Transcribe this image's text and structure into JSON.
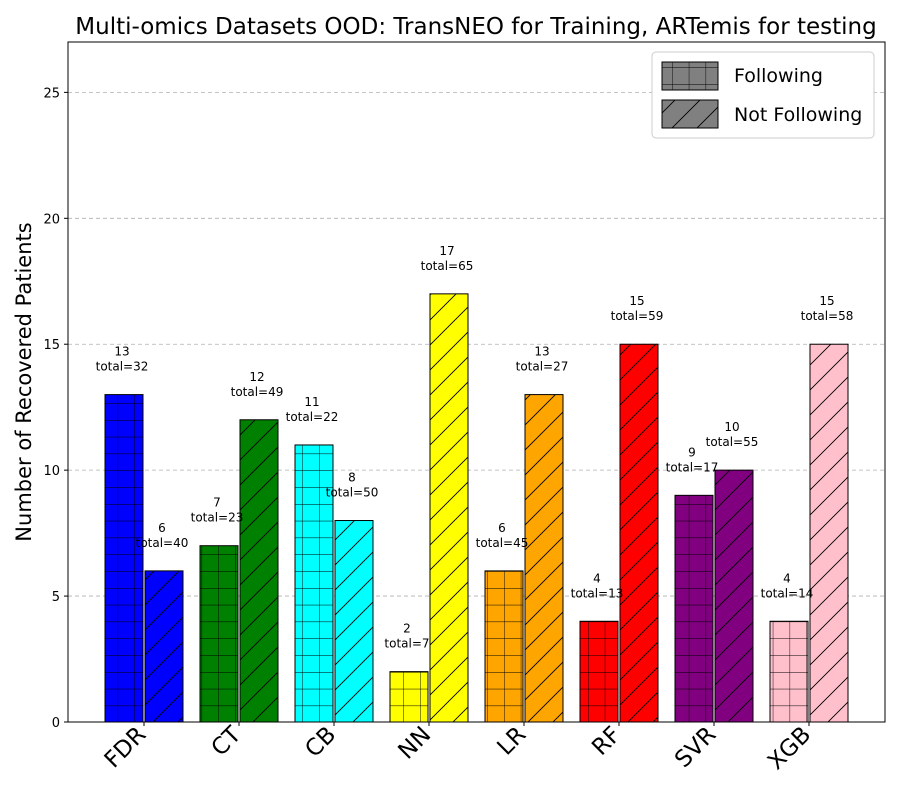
{
  "chart_data": {
    "type": "bar",
    "title": "Multi-omics Datasets OOD: TransNEO for Training, ARTemis for testing",
    "ylabel": "Number of Recovered Patients",
    "xlabel": "",
    "ylim": [
      0,
      27
    ],
    "yticks": [
      0,
      5,
      10,
      15,
      20,
      25
    ],
    "grid": "y-dashed",
    "legend_position": "top-right",
    "categories": [
      "FDR",
      "CT",
      "CB",
      "NN",
      "LR",
      "RF",
      "SVR",
      "XGB"
    ],
    "colors": [
      "#0000ff",
      "#008000",
      "#00ffff",
      "#ffff00",
      "#ffa500",
      "#ff0000",
      "#800080",
      "#ffc0cb"
    ],
    "total_prefix": "total=",
    "series": [
      {
        "name": "Following",
        "hatch": "grid",
        "values": [
          13,
          7,
          11,
          2,
          6,
          4,
          9,
          4
        ],
        "totals": [
          32,
          23,
          22,
          7,
          45,
          13,
          17,
          14
        ]
      },
      {
        "name": "Not Following",
        "hatch": "diagonal",
        "values": [
          6,
          12,
          8,
          17,
          13,
          15,
          10,
          15
        ],
        "totals": [
          40,
          49,
          50,
          65,
          27,
          59,
          55,
          58
        ]
      }
    ]
  }
}
